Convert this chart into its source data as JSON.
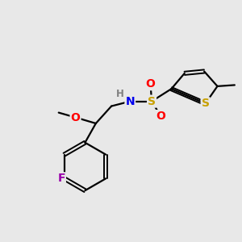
{
  "background_color": "#e8e8e8",
  "figure_size": [
    3.0,
    3.0
  ],
  "dpi": 100,
  "atom_colors": {
    "C": "#000000",
    "H": "#808080",
    "N": "#0000ee",
    "O": "#ff0000",
    "S_sulfonyl": "#c8a000",
    "S_thiophene": "#c8a000",
    "F": "#9900aa",
    "bond": "#000000"
  },
  "font_size_atom": 10,
  "font_size_small": 8.5,
  "font_size_methyl": 8.5
}
